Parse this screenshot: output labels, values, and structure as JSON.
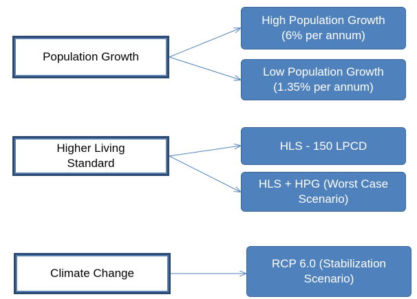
{
  "nodes": [
    {
      "lines": [
        "Population Growth"
      ]
    },
    {
      "lines": [
        "High Population Growth",
        "(6% per annum)"
      ]
    },
    {
      "lines": [
        "Low Population Growth",
        "(1.35% per annum)"
      ]
    },
    {
      "lines": [
        "Higher Living",
        "Standard"
      ]
    },
    {
      "lines": [
        "HLS  - 150 LPCD"
      ]
    },
    {
      "lines": [
        "HLS + HPG (Worst Case",
        "Scenario)"
      ]
    },
    {
      "lines": [
        "Climate Change"
      ]
    },
    {
      "lines": [
        "RCP 6.0 (Stabilization",
        "Scenario)"
      ]
    }
  ]
}
